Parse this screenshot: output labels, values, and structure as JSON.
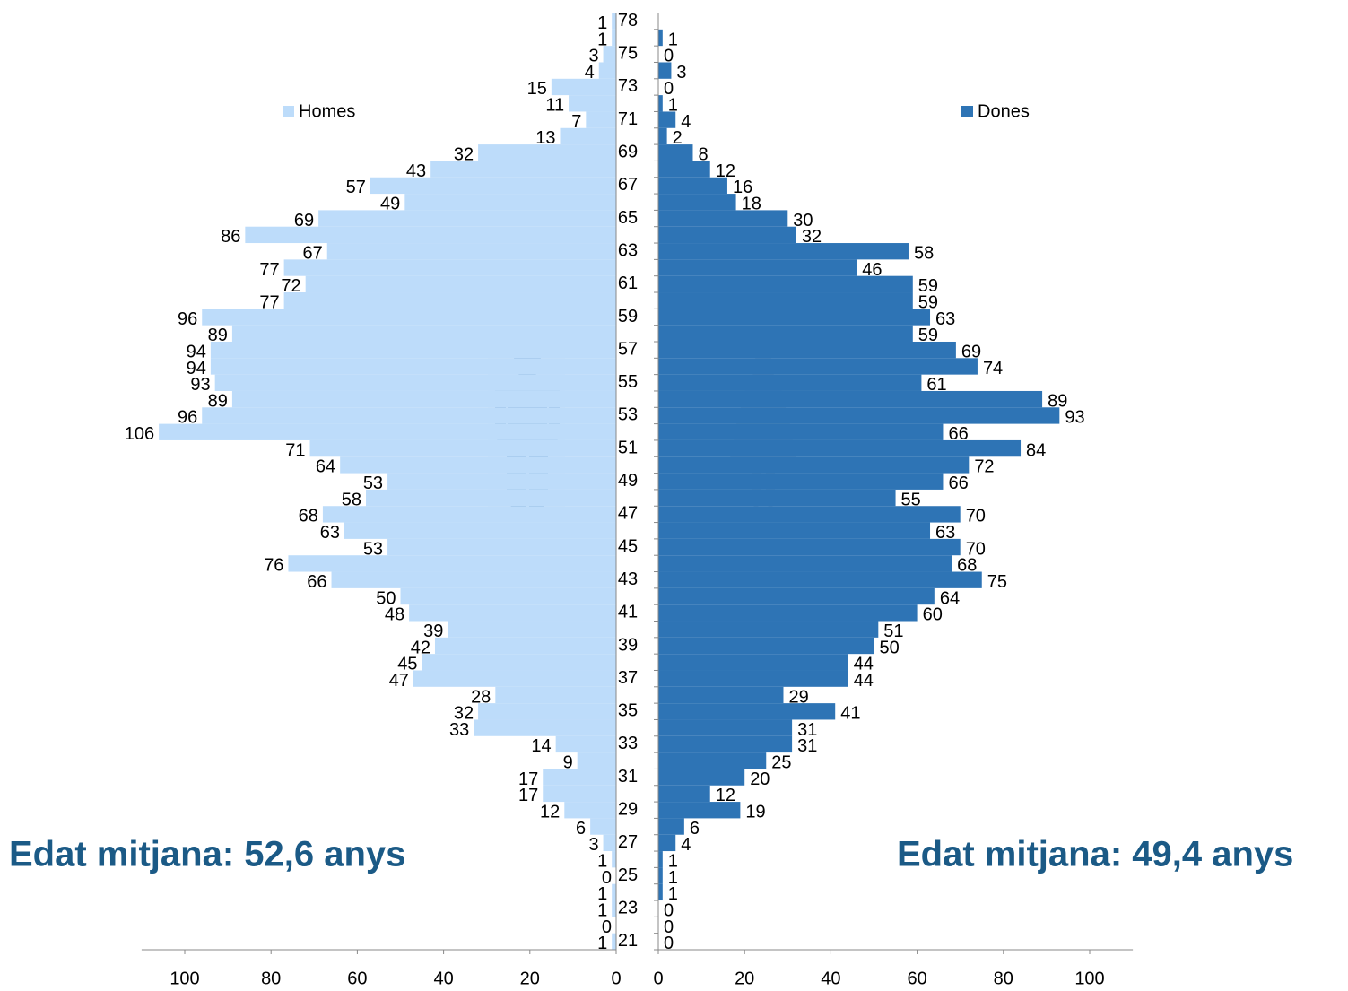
{
  "chart_data": {
    "type": "population_pyramid",
    "categories": [
      "78",
      null,
      "75",
      null,
      "73",
      null,
      "71",
      null,
      "69",
      null,
      "67",
      null,
      "65",
      null,
      "63",
      null,
      "61",
      null,
      "59",
      null,
      "57",
      null,
      "55",
      null,
      "53",
      null,
      "51",
      null,
      "49",
      null,
      "47",
      null,
      "45",
      null,
      "43",
      null,
      "41",
      null,
      "39",
      null,
      "37",
      null,
      "35",
      null,
      "33",
      null,
      "31",
      null,
      "29",
      null,
      "27",
      null,
      "25",
      null,
      "23",
      null,
      "21"
    ],
    "series": [
      {
        "name": "Homes",
        "color": "#bddcfa",
        "values": [
          1,
          1,
          3,
          4,
          15,
          11,
          7,
          13,
          32,
          43,
          57,
          49,
          69,
          86,
          67,
          77,
          72,
          77,
          96,
          89,
          94,
          94,
          93,
          89,
          96,
          106,
          71,
          64,
          53,
          58,
          68,
          63,
          53,
          76,
          66,
          50,
          48,
          39,
          42,
          45,
          47,
          28,
          32,
          33,
          14,
          9,
          17,
          17,
          12,
          6,
          3,
          1,
          0,
          1,
          1,
          0,
          1
        ]
      },
      {
        "name": "Dones",
        "color": "#2e74b5",
        "values": [
          null,
          1,
          0,
          3,
          0,
          1,
          4,
          2,
          8,
          12,
          16,
          18,
          30,
          32,
          58,
          46,
          59,
          59,
          63,
          59,
          69,
          74,
          61,
          89,
          93,
          66,
          84,
          72,
          66,
          55,
          70,
          63,
          70,
          68,
          75,
          64,
          60,
          51,
          50,
          44,
          44,
          29,
          41,
          31,
          31,
          25,
          20,
          12,
          19,
          6,
          4,
          1,
          1,
          1,
          0,
          0,
          0
        ]
      }
    ],
    "xlim": [
      0,
      110
    ],
    "xticks": [
      0,
      20,
      40,
      60,
      80,
      100
    ],
    "annotations": [
      "Edat mitjana: 52,6 anys",
      "Edat mitjana: 49,4 anys"
    ]
  }
}
